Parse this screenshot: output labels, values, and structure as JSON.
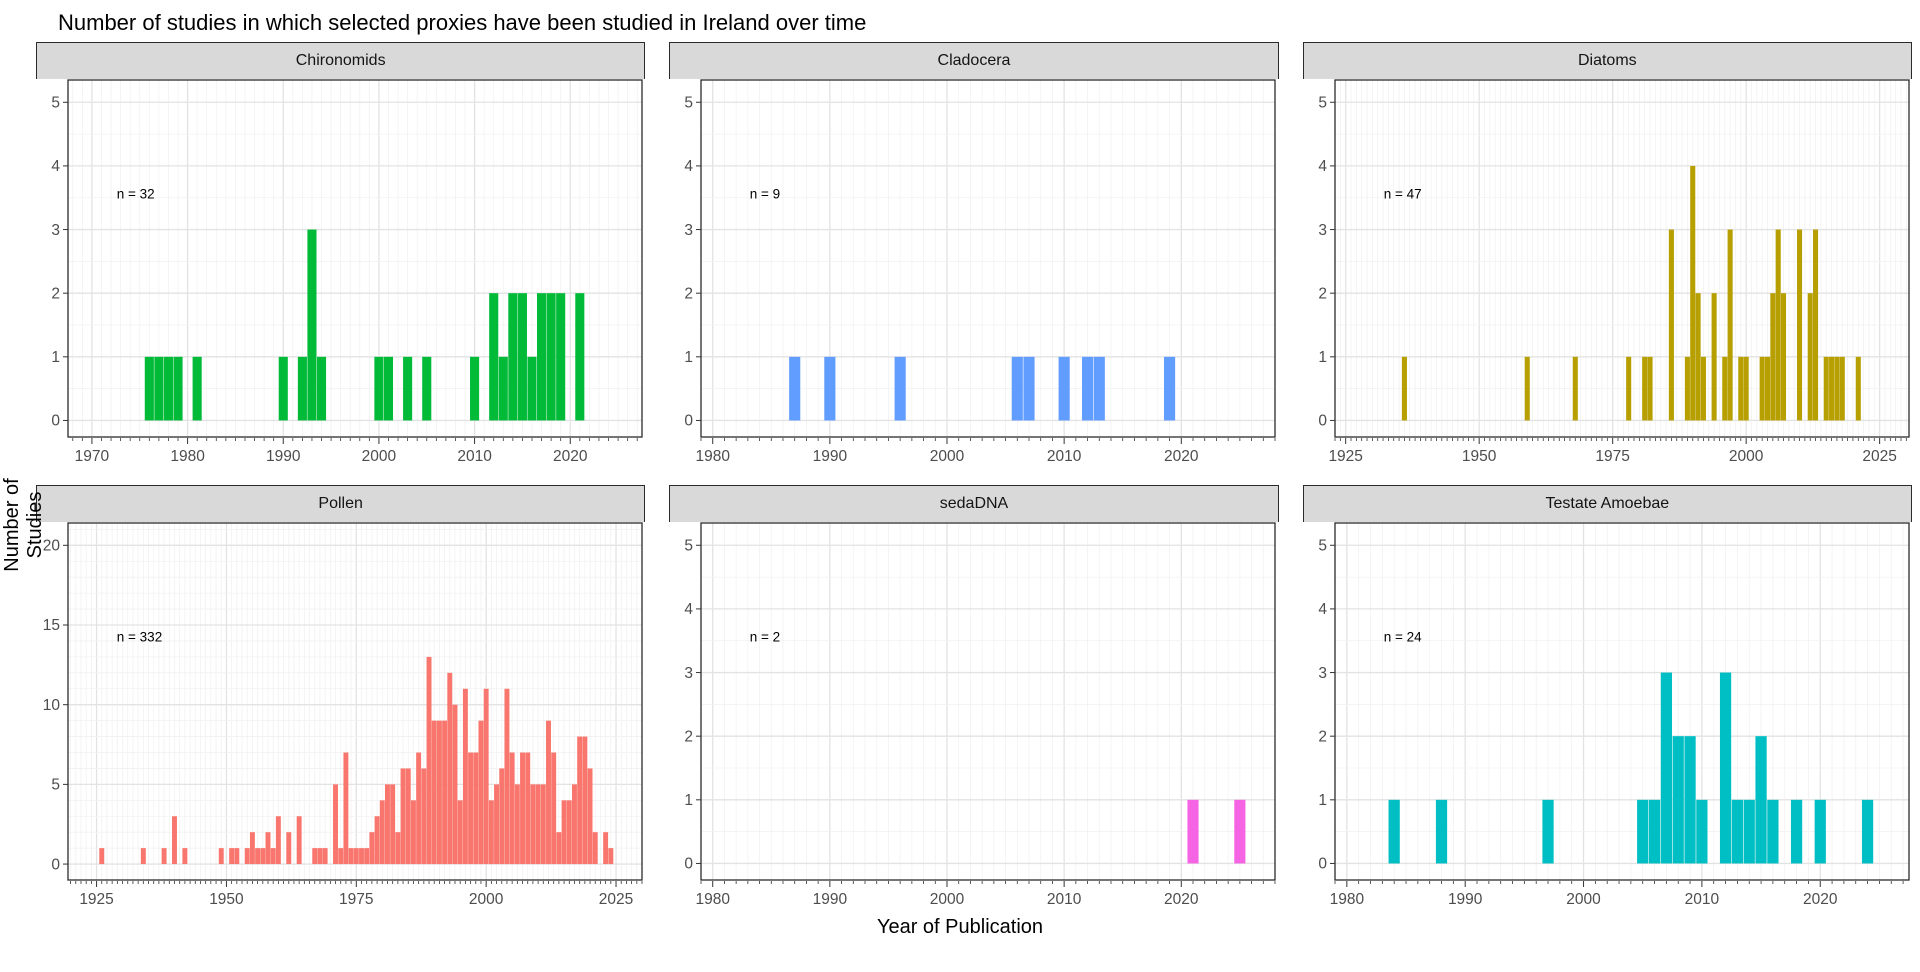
{
  "chart_data": {
    "type": "bar",
    "title": "Number of studies in which selected proxies have been studied in Ireland over time",
    "xlabel": "Year of Publication",
    "ylabel": "Number of Studies",
    "grid": "on",
    "legend": "none",
    "strip_fill": "#d9d9d9",
    "facets": [
      {
        "label": "Chironomids",
        "n_label": "n = 32",
        "color": "#00BA38",
        "xlim": [
          1967.5,
          2027.5
        ],
        "xticks": [
          1970,
          1980,
          1990,
          2000,
          2010,
          2020
        ],
        "ylim": [
          -0.26,
          5.35
        ],
        "yticks": [
          0,
          1,
          2,
          3,
          4,
          5
        ],
        "yminor_step": 0.5,
        "bars": [
          [
            1976,
            1
          ],
          [
            1977,
            1
          ],
          [
            1978,
            1
          ],
          [
            1979,
            1
          ],
          [
            1981,
            1
          ],
          [
            1990,
            1
          ],
          [
            1992,
            1
          ],
          [
            1993,
            3
          ],
          [
            1994,
            1
          ],
          [
            2000,
            1
          ],
          [
            2001,
            1
          ],
          [
            2003,
            1
          ],
          [
            2005,
            1
          ],
          [
            2010,
            1
          ],
          [
            2012,
            2
          ],
          [
            2013,
            1
          ],
          [
            2014,
            2
          ],
          [
            2015,
            2
          ],
          [
            2016,
            1
          ],
          [
            2017,
            2
          ],
          [
            2018,
            2
          ],
          [
            2019,
            2
          ],
          [
            2021,
            2
          ]
        ]
      },
      {
        "label": "Cladocera",
        "n_label": "n = 9",
        "color": "#619CFF",
        "xlim": [
          1979,
          2028
        ],
        "xticks": [
          1980,
          1990,
          2000,
          2010,
          2020
        ],
        "ylim": [
          -0.26,
          5.35
        ],
        "yticks": [
          0,
          1,
          2,
          3,
          4,
          5
        ],
        "yminor_step": 0.5,
        "bars": [
          [
            1987,
            1
          ],
          [
            1990,
            1
          ],
          [
            1996,
            1
          ],
          [
            2006,
            1
          ],
          [
            2007,
            1
          ],
          [
            2010,
            1
          ],
          [
            2012,
            1
          ],
          [
            2013,
            1
          ],
          [
            2019,
            1
          ]
        ]
      },
      {
        "label": "Diatoms",
        "n_label": "n = 47",
        "color": "#B79F00",
        "xlim": [
          1923,
          2030.5
        ],
        "xticks": [
          1925,
          1950,
          1975,
          2000,
          2025
        ],
        "ylim": [
          -0.26,
          5.35
        ],
        "yticks": [
          0,
          1,
          2,
          3,
          4,
          5
        ],
        "yminor_step": 0.5,
        "bars": [
          [
            1936,
            1
          ],
          [
            1959,
            1
          ],
          [
            1968,
            1
          ],
          [
            1978,
            1
          ],
          [
            1981,
            1
          ],
          [
            1982,
            1
          ],
          [
            1986,
            3
          ],
          [
            1989,
            1
          ],
          [
            1990,
            4
          ],
          [
            1991,
            2
          ],
          [
            1992,
            1
          ],
          [
            1994,
            2
          ],
          [
            1996,
            1
          ],
          [
            1997,
            3
          ],
          [
            1999,
            1
          ],
          [
            2000,
            1
          ],
          [
            2003,
            1
          ],
          [
            2004,
            1
          ],
          [
            2005,
            2
          ],
          [
            2006,
            3
          ],
          [
            2007,
            2
          ],
          [
            2010,
            3
          ],
          [
            2012,
            2
          ],
          [
            2013,
            3
          ],
          [
            2015,
            1
          ],
          [
            2016,
            1
          ],
          [
            2017,
            1
          ],
          [
            2018,
            1
          ],
          [
            2021,
            1
          ]
        ]
      },
      {
        "label": "Pollen",
        "n_label": "n = 332",
        "color": "#F8766D",
        "xlim": [
          1919.5,
          2030
        ],
        "xticks": [
          1925,
          1950,
          1975,
          2000,
          2025
        ],
        "ylim": [
          -1.0,
          21.4
        ],
        "yticks": [
          0,
          5,
          10,
          15,
          20
        ],
        "yminor_step": 1,
        "bars": [
          [
            1926,
            1
          ],
          [
            1934,
            1
          ],
          [
            1938,
            1
          ],
          [
            1940,
            3
          ],
          [
            1942,
            1
          ],
          [
            1949,
            1
          ],
          [
            1951,
            1
          ],
          [
            1952,
            1
          ],
          [
            1954,
            1
          ],
          [
            1955,
            2
          ],
          [
            1956,
            1
          ],
          [
            1957,
            1
          ],
          [
            1958,
            2
          ],
          [
            1959,
            1
          ],
          [
            1960,
            3
          ],
          [
            1962,
            2
          ],
          [
            1964,
            3
          ],
          [
            1967,
            1
          ],
          [
            1968,
            1
          ],
          [
            1969,
            1
          ],
          [
            1971,
            5
          ],
          [
            1972,
            1
          ],
          [
            1973,
            7
          ],
          [
            1974,
            1
          ],
          [
            1975,
            1
          ],
          [
            1976,
            1
          ],
          [
            1977,
            1
          ],
          [
            1978,
            2
          ],
          [
            1979,
            3
          ],
          [
            1980,
            4
          ],
          [
            1981,
            5
          ],
          [
            1982,
            5
          ],
          [
            1983,
            2
          ],
          [
            1984,
            6
          ],
          [
            1985,
            6
          ],
          [
            1986,
            4
          ],
          [
            1987,
            7
          ],
          [
            1988,
            6
          ],
          [
            1989,
            13
          ],
          [
            1990,
            9
          ],
          [
            1991,
            9
          ],
          [
            1992,
            9
          ],
          [
            1993,
            12
          ],
          [
            1994,
            10
          ],
          [
            1995,
            4
          ],
          [
            1996,
            11
          ],
          [
            1997,
            7
          ],
          [
            1998,
            7
          ],
          [
            1999,
            9
          ],
          [
            2000,
            11
          ],
          [
            2001,
            4
          ],
          [
            2002,
            5
          ],
          [
            2003,
            6
          ],
          [
            2004,
            11
          ],
          [
            2005,
            7
          ],
          [
            2006,
            5
          ],
          [
            2007,
            7
          ],
          [
            2008,
            7
          ],
          [
            2009,
            5
          ],
          [
            2010,
            5
          ],
          [
            2011,
            5
          ],
          [
            2012,
            9
          ],
          [
            2013,
            7
          ],
          [
            2014,
            2
          ],
          [
            2015,
            4
          ],
          [
            2016,
            4
          ],
          [
            2017,
            5
          ],
          [
            2018,
            8
          ],
          [
            2019,
            8
          ],
          [
            2020,
            6
          ],
          [
            2021,
            2
          ],
          [
            2023,
            2
          ],
          [
            2024,
            1
          ]
        ]
      },
      {
        "label": "sedaDNA",
        "n_label": "n = 2",
        "color": "#F564E3",
        "xlim": [
          1979,
          2028
        ],
        "xticks": [
          1980,
          1990,
          2000,
          2010,
          2020
        ],
        "ylim": [
          -0.26,
          5.35
        ],
        "yticks": [
          0,
          1,
          2,
          3,
          4,
          5
        ],
        "yminor_step": 0.5,
        "bars": [
          [
            2021,
            1
          ],
          [
            2025,
            1
          ]
        ]
      },
      {
        "label": "Testate Amoebae",
        "n_label": "n = 24",
        "color": "#00BFC4",
        "xlim": [
          1979,
          2027.5
        ],
        "xticks": [
          1980,
          1990,
          2000,
          2010,
          2020
        ],
        "ylim": [
          -0.26,
          5.35
        ],
        "yticks": [
          0,
          1,
          2,
          3,
          4,
          5
        ],
        "yminor_step": 0.5,
        "bars": [
          [
            1984,
            1
          ],
          [
            1988,
            1
          ],
          [
            1997,
            1
          ],
          [
            2005,
            1
          ],
          [
            2006,
            1
          ],
          [
            2007,
            3
          ],
          [
            2008,
            2
          ],
          [
            2009,
            2
          ],
          [
            2010,
            1
          ],
          [
            2012,
            3
          ],
          [
            2013,
            1
          ],
          [
            2014,
            1
          ],
          [
            2015,
            2
          ],
          [
            2016,
            1
          ],
          [
            2018,
            1
          ],
          [
            2020,
            1
          ],
          [
            2024,
            1
          ]
        ]
      }
    ]
  }
}
